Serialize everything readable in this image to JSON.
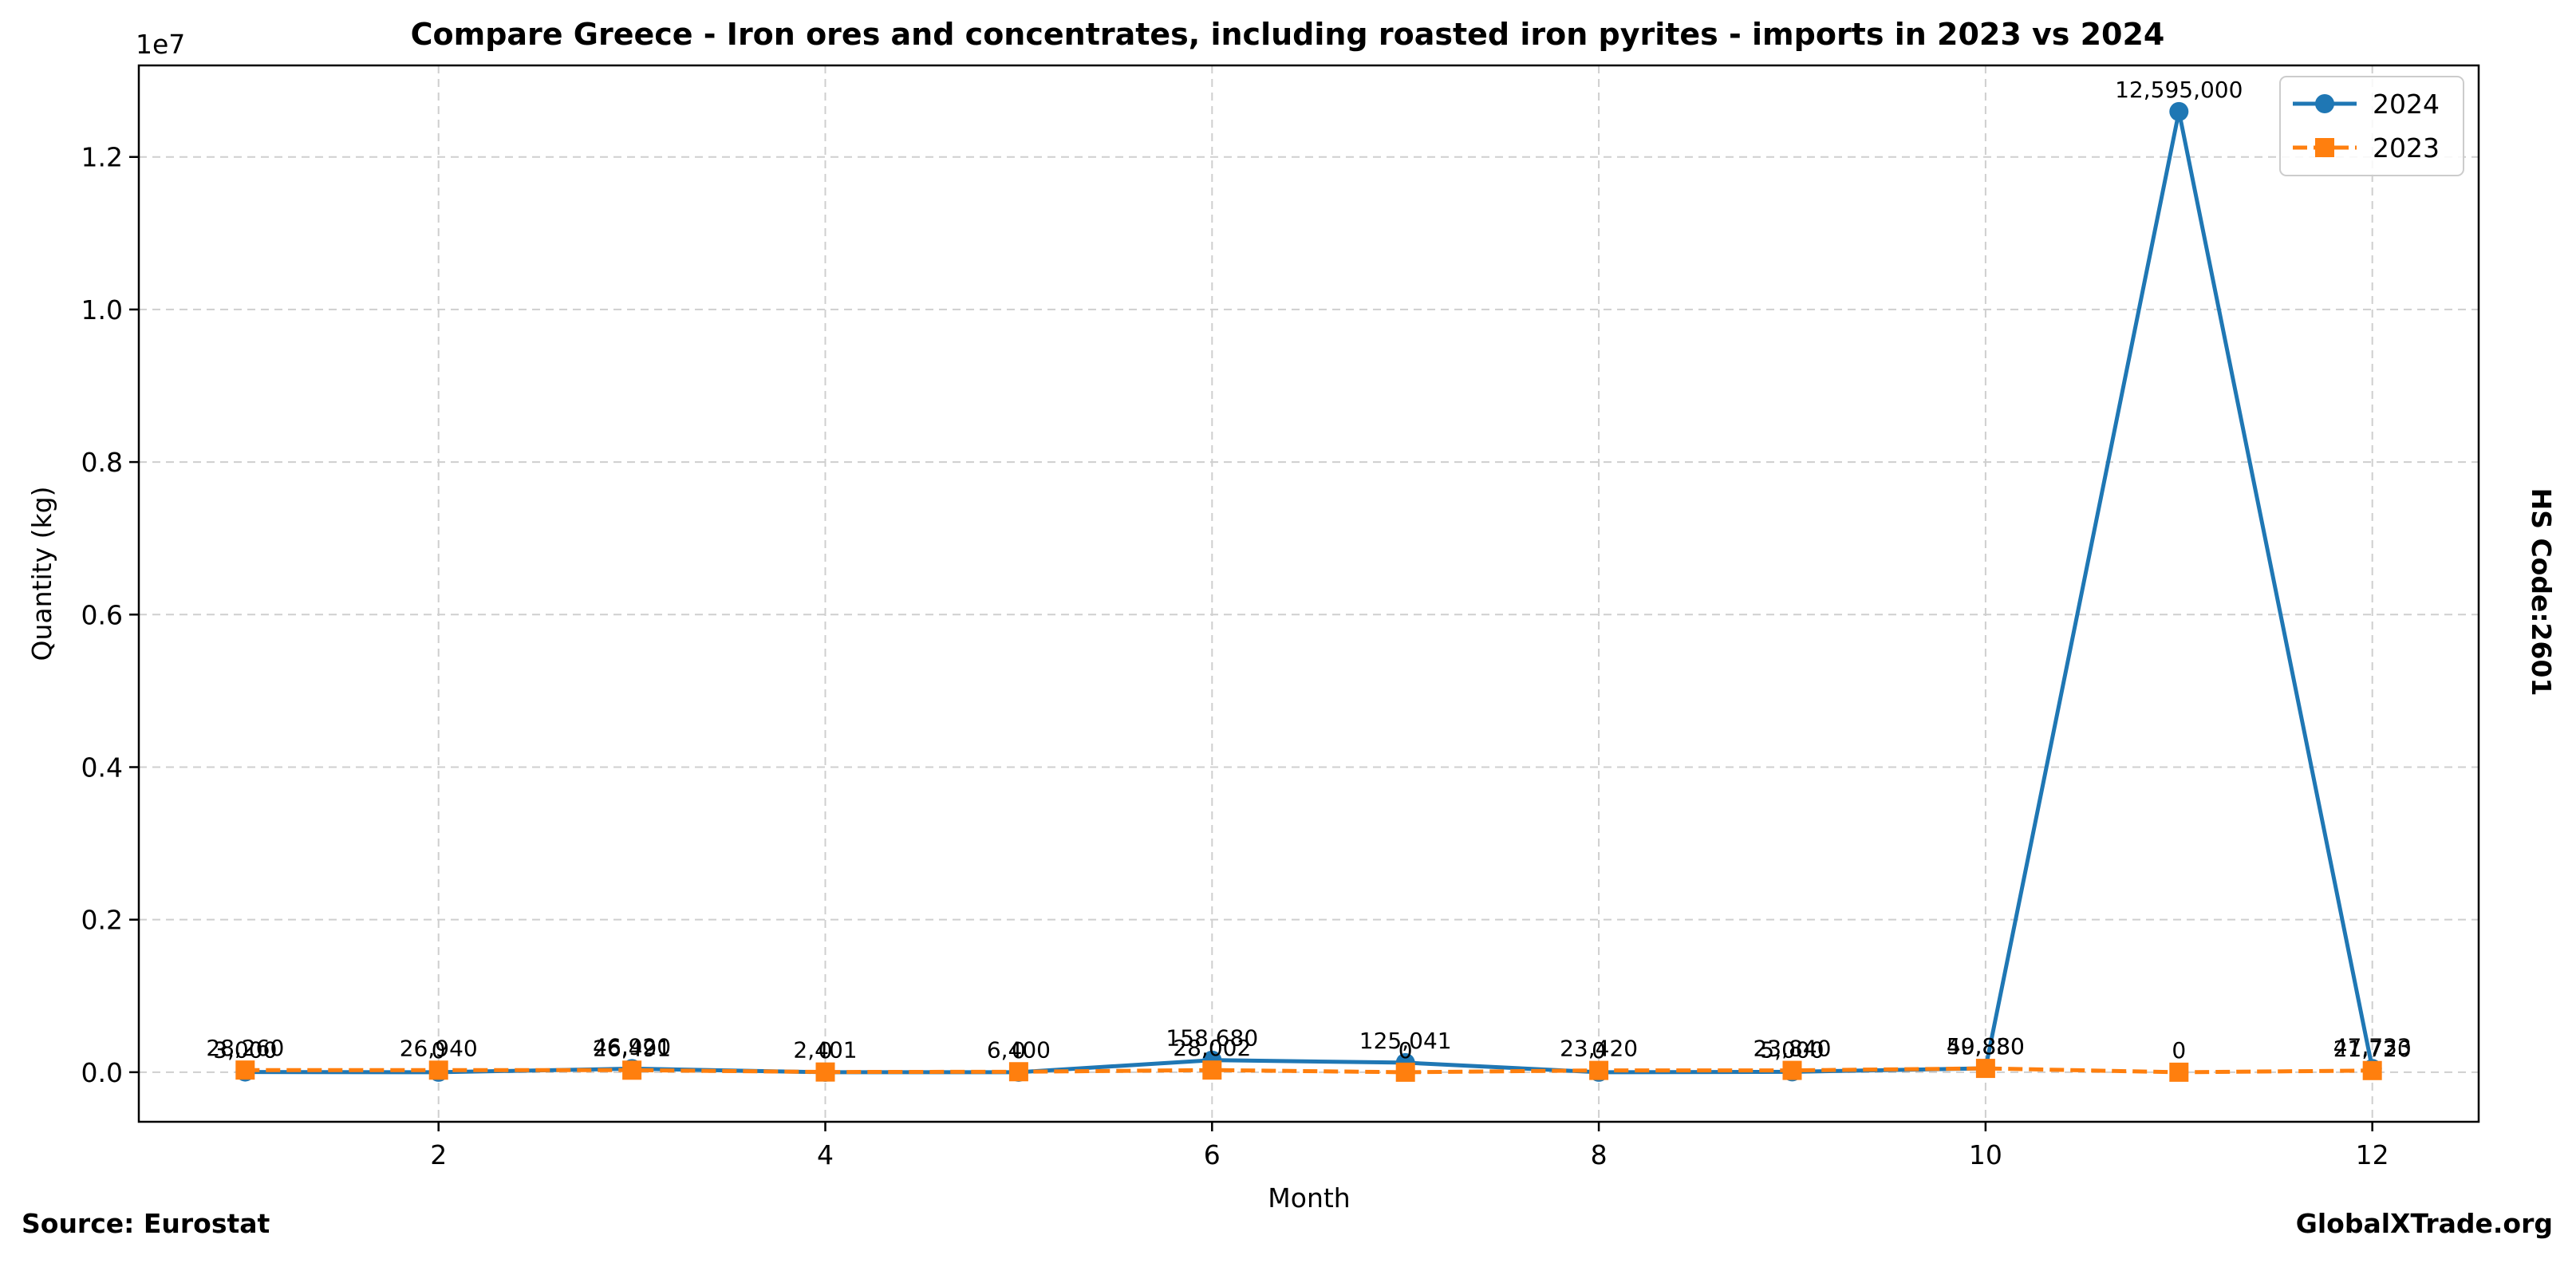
{
  "chart_data": {
    "type": "line",
    "title": "Compare Greece - Iron ores and concentrates, including roasted iron pyrites - imports in 2023 vs 2024",
    "xlabel": "Month",
    "ylabel": "Quantity (kg)",
    "y_offset_label": "1e7",
    "xlim": [
      0.45,
      12.55
    ],
    "ylim": [
      -650000,
      13200000
    ],
    "x_ticks": [
      2,
      4,
      6,
      8,
      10,
      12
    ],
    "x_tick_labels": [
      "2",
      "4",
      "6",
      "8",
      "10",
      "12"
    ],
    "y_ticks": [
      0,
      2000000,
      4000000,
      6000000,
      8000000,
      10000000,
      12000000
    ],
    "y_tick_labels": [
      "0.0",
      "0.2",
      "0.4",
      "0.6",
      "0.8",
      "1.0",
      "1.2"
    ],
    "grid": true,
    "legend_position": "top-right",
    "x": [
      1,
      2,
      3,
      4,
      5,
      6,
      7,
      8,
      9,
      10,
      11,
      12
    ],
    "series": [
      {
        "name": "2024",
        "color": "#1f77b4",
        "marker": "circle",
        "line_style": "solid",
        "values": [
          3000,
          0,
          46920,
          0,
          0,
          158680,
          125041,
          0,
          5000,
          50830,
          12595000,
          47733
        ],
        "data_labels": [
          "3,000",
          "0",
          "46,920",
          "0",
          "0",
          "158,680",
          "125,041",
          "0",
          "5,000",
          "50,830",
          "12,595,000",
          "47,733"
        ]
      },
      {
        "name": "2023",
        "color": "#ff7f0e",
        "marker": "square",
        "line_style": "dashed",
        "values": [
          28260,
          26940,
          26491,
          2401,
          6400,
          28002,
          0,
          23420,
          23840,
          49880,
          0,
          21720
        ],
        "data_labels": [
          "28,260",
          "26,940",
          "26,491",
          "2,401",
          "6,400",
          "28,002",
          "0",
          "23,420",
          "23,840",
          "49,880",
          "0",
          "21,720"
        ]
      }
    ]
  },
  "side_label": "HS Code:2601",
  "footer": {
    "source": "Source: Eurostat",
    "brand": "GlobalXTrade.org"
  }
}
